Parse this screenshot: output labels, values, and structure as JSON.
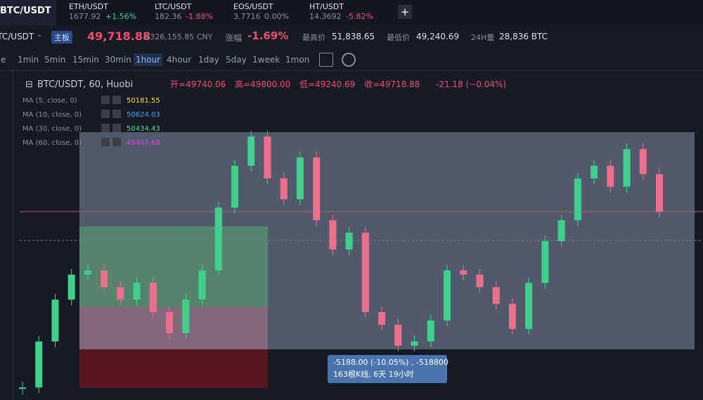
{
  "tabs": [
    {
      "pair": "BTC/USDT"
    },
    {
      "pair": "ETH/USDT",
      "price": "1677.92",
      "change": "+1.56%"
    },
    {
      "pair": "LTC/USDT",
      "price": "182.36",
      "change": "-1.88%"
    },
    {
      "pair": "EOS/USDT",
      "price": "3.7716",
      "change": "0.00%"
    },
    {
      "pair": "HT/USDT",
      "price": "14.3692",
      "change": "-5.82%"
    }
  ],
  "ticker": {
    "pair": "BTC/USDT",
    "board": "主板",
    "price": "49,718.88",
    "cny": "≈326,155.85 CNY",
    "change_label": "涨幅",
    "change": "-1.69%",
    "high_label": "最高价",
    "high": "51,838.65",
    "low_label": "最低价",
    "low": "49,240.69",
    "vol_label": "24H量",
    "vol": "28,836 BTC"
  },
  "intervals": [
    "Time",
    "1min",
    "5min",
    "15min",
    "30min",
    "1hour",
    "4hour",
    "1day",
    "5day",
    "1week",
    "1mon"
  ],
  "chart": {
    "title": "BTC/USDT, 60, Huobi",
    "open": "开=49740.06",
    "high": "高=49800.00",
    "low": "低=49240.69",
    "close": "收=49718.88",
    "change": "-21.18 (−0.04%)",
    "ma": [
      {
        "name": "MA (5, close, 0)",
        "value": "50181.55",
        "color": "#f5e33c"
      },
      {
        "name": "MA (10, close, 0)",
        "value": "50624.03",
        "color": "#4aa3f0"
      },
      {
        "name": "MA (30, close, 0)",
        "value": "50434.43",
        "color": "#5fd98a"
      },
      {
        "name": "MA (60, close, 0)",
        "value": "49467.60",
        "color": "#e040e0"
      }
    ],
    "ylim": [
      45200,
      53000
    ],
    "closes": [
      45500,
      46600,
      47600,
      48200,
      48300,
      47900,
      47600,
      48000,
      47300,
      46800,
      47600,
      48300,
      49800,
      50800,
      51500,
      50500,
      50000,
      51000,
      49500,
      48800,
      49200,
      47300,
      47000,
      46500,
      46600,
      47100,
      48300,
      48200,
      47900,
      47500,
      46900,
      48000,
      49000,
      49500,
      50500,
      50800,
      50300,
      51200,
      50600,
      49700
    ],
    "tooltip": {
      "line1": "-5188.00 (-10.05%) , -518800",
      "line2": "163根K线, 6天 19小时"
    }
  }
}
